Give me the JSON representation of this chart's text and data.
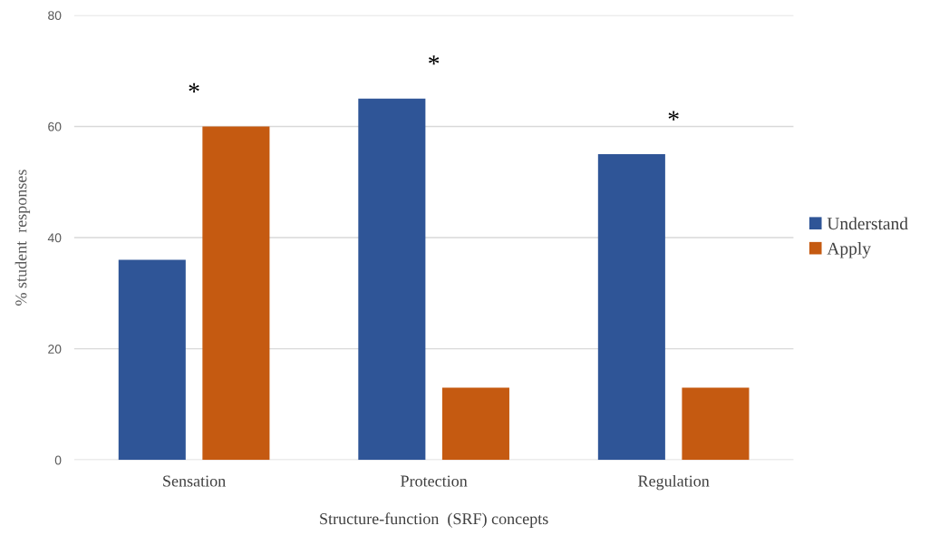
{
  "chart_data": {
    "type": "bar",
    "xlabel": "Structure-function  (SRF) concepts",
    "ylabel": "% student  responses",
    "categories": [
      "Sensation",
      "Protection",
      "Regulation"
    ],
    "series": [
      {
        "name": "Understand",
        "color": "#2f5597",
        "values": [
          36,
          65,
          55
        ]
      },
      {
        "name": "Apply",
        "color": "#c55a11",
        "values": [
          60,
          13,
          13
        ]
      }
    ],
    "ylim": [
      0,
      80
    ],
    "yticks": [
      0,
      20,
      40,
      60,
      80
    ],
    "grid": "y",
    "legend": "right",
    "annotations": [
      "*",
      "*",
      "*"
    ]
  }
}
